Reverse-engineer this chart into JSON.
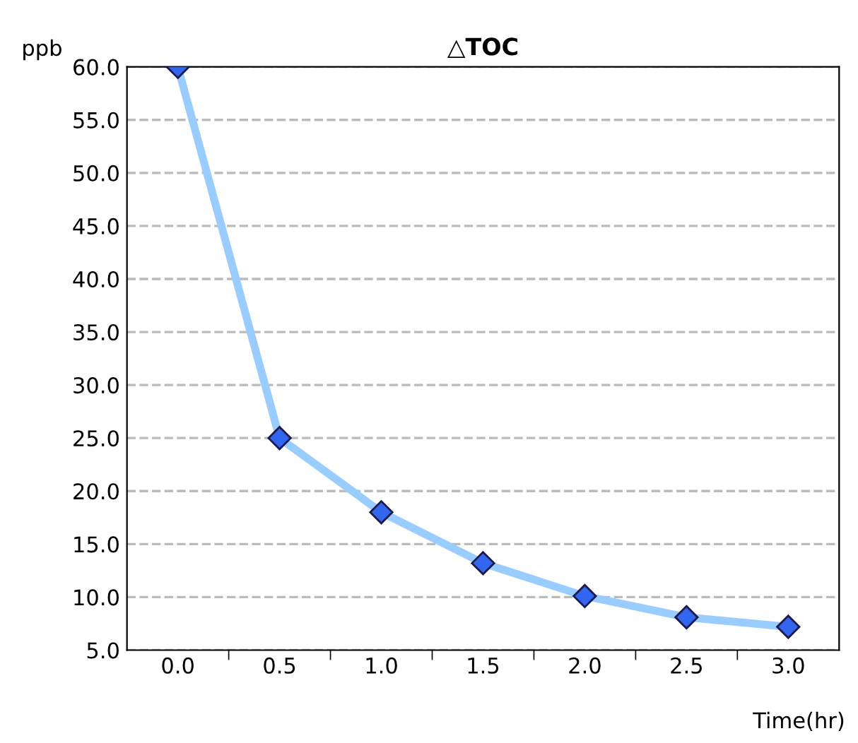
{
  "chart_data": {
    "type": "line",
    "title": "△TOC",
    "xlabel": "Time(hr)",
    "ylabel": "ppb",
    "categories": [
      "0.0",
      "0.5",
      "1.0",
      "1.5",
      "2.0",
      "2.5",
      "3.0"
    ],
    "series": [
      {
        "color": "#99ccff",
        "values": [
          60.0,
          25.0,
          18.0,
          13.2,
          10.1,
          8.1,
          7.2
        ]
      }
    ],
    "ylim": [
      5,
      60
    ],
    "yticks": [
      {
        "value": 5,
        "label": "5.0"
      },
      {
        "value": 10,
        "label": "10.0"
      },
      {
        "value": 15,
        "label": "15.0"
      },
      {
        "value": 20,
        "label": "20.0"
      },
      {
        "value": 25,
        "label": "25.0"
      },
      {
        "value": 30,
        "label": "30.0"
      },
      {
        "value": 35,
        "label": "35.0"
      },
      {
        "value": 40,
        "label": "40.0"
      },
      {
        "value": 45,
        "label": "45.0"
      },
      {
        "value": 50,
        "label": "50.0"
      },
      {
        "value": 55,
        "label": "55.0"
      },
      {
        "value": 60,
        "label": "60.0"
      }
    ],
    "grid": "y",
    "marker": "diamond",
    "line_style": "solid"
  }
}
